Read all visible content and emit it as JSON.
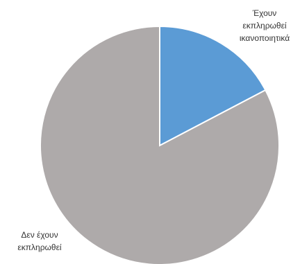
{
  "chart_data": {
    "type": "pie",
    "start_angle_deg": 0,
    "direction": "clockwise",
    "slices": [
      {
        "label_lines": [
          "Έχουν",
          "εκπληρωθεί",
          "ικανοποιητικά"
        ],
        "value": 17.3,
        "color": "#5b9bd5"
      },
      {
        "label_lines": [
          "Δεν έχουν",
          "εκπληρωθεί"
        ],
        "value": 82.7,
        "color": "#aeaaaa"
      }
    ],
    "legend": "none",
    "title": ""
  }
}
